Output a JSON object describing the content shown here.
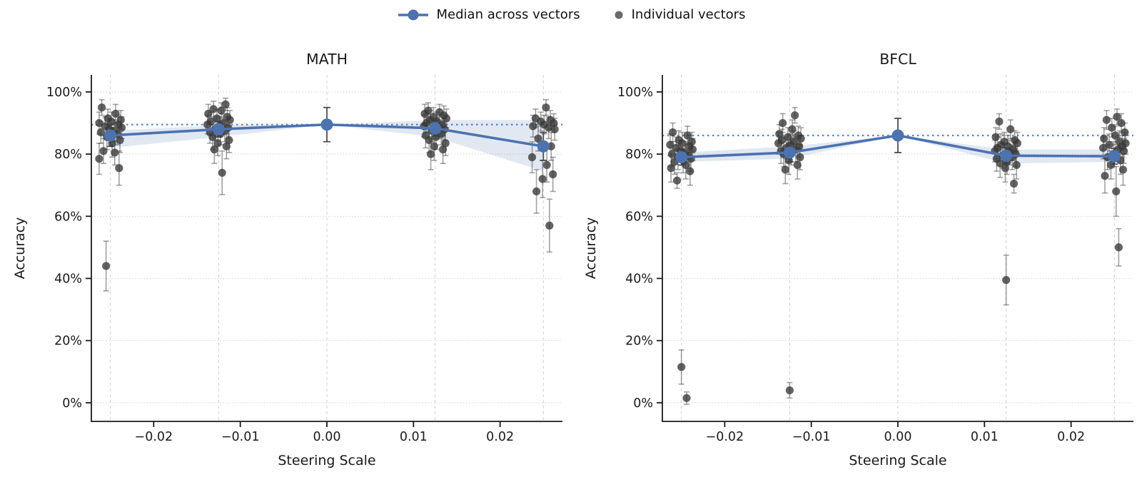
{
  "legend": {
    "median_label": "Median across vectors",
    "individual_label": "Individual vectors"
  },
  "colors": {
    "median_blue": "#4C72B0",
    "baseline_blue": "#5E88C4",
    "band_fill": "rgba(76,114,176,0.16)",
    "dot_gray": "rgba(55,55,55,0.78)",
    "errbar_gray": "rgba(85,85,85,0.55)",
    "median_errbar": "rgba(60,60,60,0.9)",
    "grid": "#cfcfcf",
    "spine": "#1a1a1a",
    "text": "#1a1a1a"
  },
  "axes": {
    "xlabel": "Steering Scale",
    "ylabel": "Accuracy",
    "xlim": [
      -0.0272,
      0.0272
    ],
    "ylim": [
      -6,
      105.5
    ],
    "x_ticks": [
      -0.02,
      -0.01,
      0.0,
      0.01,
      0.02
    ],
    "x_tick_labels": [
      "−0.02",
      "−0.01",
      "0.00",
      "0.01",
      "0.02"
    ],
    "y_ticks": [
      0,
      20,
      40,
      60,
      80,
      100
    ],
    "y_tick_labels": [
      "0%",
      "20%",
      "40%",
      "60%",
      "80%",
      "100%"
    ]
  },
  "chart_data": [
    {
      "type": "line+scatter",
      "title": "MATH",
      "baseline": 89.5,
      "x": [
        -0.025,
        -0.0125,
        0.0,
        0.0125,
        0.025
      ],
      "median": [
        86.0,
        88.0,
        89.5,
        88.3,
        82.5
      ],
      "median_err": [
        3.5,
        2.5,
        5.5,
        2.5,
        4.5
      ],
      "band_lo": [
        82.0,
        85.5,
        89.5,
        85.5,
        74.5
      ],
      "band_hi": [
        87.5,
        89.3,
        89.5,
        91.0,
        91.0
      ],
      "clusters": [
        {
          "x": -0.025,
          "points": [
            [
              -0.001,
              95,
              2.5
            ],
            [
              0.0006,
              93,
              3
            ],
            [
              -0.0003,
              91.5,
              3
            ],
            [
              0.0012,
              91,
              3
            ],
            [
              0.0001,
              90.5,
              3
            ],
            [
              -0.0013,
              90,
              3.5
            ],
            [
              0.0009,
              89.5,
              3
            ],
            [
              -0.0006,
              89,
              3
            ],
            [
              0.0013,
              88.5,
              3.5
            ],
            [
              -0.0001,
              88,
              3
            ],
            [
              0.0004,
              87.5,
              3.5
            ],
            [
              -0.0011,
              87,
              3.5
            ],
            [
              0.0008,
              86.5,
              3.5
            ],
            [
              -0.0004,
              85.5,
              4
            ],
            [
              0.0011,
              84.5,
              4
            ],
            [
              0.0002,
              83.5,
              4.5
            ],
            [
              -0.0008,
              81,
              4
            ],
            [
              0.0005,
              80.5,
              4
            ],
            [
              -0.0013,
              78.5,
              5
            ],
            [
              0.001,
              75.5,
              5.5
            ],
            [
              -0.0005,
              44,
              8
            ]
          ]
        },
        {
          "x": -0.0125,
          "points": [
            [
              0.0008,
              96,
              2
            ],
            [
              -0.0006,
              94.5,
              2.5
            ],
            [
              0.0003,
              94,
              2.5
            ],
            [
              -0.0012,
              93,
              3
            ],
            [
              0.001,
              92,
              3
            ],
            [
              -0.0002,
              91.5,
              3
            ],
            [
              0.0013,
              91,
              3
            ],
            [
              -0.0009,
              90.5,
              3
            ],
            [
              0.0005,
              90,
              3
            ],
            [
              -0.0013,
              89.5,
              3
            ],
            [
              0.0001,
              89,
              3
            ],
            [
              0.0011,
              88.5,
              3.5
            ],
            [
              -0.0004,
              88,
              3.5
            ],
            [
              0.0007,
              87.5,
              3.5
            ],
            [
              -0.001,
              87,
              3.5
            ],
            [
              0.0002,
              86.5,
              3.5
            ],
            [
              -0.0007,
              85.5,
              4
            ],
            [
              0.0012,
              84.5,
              4
            ],
            [
              -0.0001,
              83.5,
              4
            ],
            [
              0.0009,
              82.5,
              4
            ],
            [
              -0.0005,
              81.5,
              4.5
            ],
            [
              0.0004,
              74,
              7
            ]
          ]
        },
        {
          "x": 0.0,
          "points": []
        },
        {
          "x": 0.0125,
          "points": [
            [
              -0.0008,
              94,
              2.5
            ],
            [
              0.0005,
              93.5,
              2.5
            ],
            [
              -0.0012,
              93,
              3
            ],
            [
              0.001,
              92.5,
              3
            ],
            [
              -0.0002,
              92,
              3
            ],
            [
              0.0013,
              91.5,
              3
            ],
            [
              -0.0006,
              91,
              3
            ],
            [
              0.0002,
              90.5,
              3
            ],
            [
              -0.001,
              90,
              3
            ],
            [
              0.0008,
              89.5,
              3
            ],
            [
              -0.0013,
              89,
              3.5
            ],
            [
              0.0004,
              88.5,
              3.5
            ],
            [
              0.0011,
              88,
              3.5
            ],
            [
              -0.0004,
              87.5,
              3.5
            ],
            [
              0.0007,
              86.5,
              3.5
            ],
            [
              -0.0011,
              86,
              4
            ],
            [
              0.0001,
              85.5,
              4
            ],
            [
              -0.0007,
              84.5,
              4
            ],
            [
              0.0012,
              83.5,
              4
            ],
            [
              -0.0001,
              82.5,
              4.5
            ],
            [
              0.0009,
              81.5,
              4.5
            ],
            [
              -0.0005,
              80,
              5
            ]
          ]
        },
        {
          "x": 0.025,
          "points": [
            [
              0.0003,
              95,
              2.5
            ],
            [
              -0.0009,
              91.5,
              3
            ],
            [
              0.0008,
              91,
              3
            ],
            [
              -0.0003,
              90.5,
              3
            ],
            [
              0.0012,
              90,
              3
            ],
            [
              0.0001,
              89.5,
              3
            ],
            [
              -0.0012,
              89,
              3.5
            ],
            [
              0.0006,
              88.5,
              3.5
            ],
            [
              0.0013,
              88,
              3.5
            ],
            [
              -0.0006,
              85,
              4
            ],
            [
              0.0009,
              82.5,
              4.5
            ],
            [
              -0.0013,
              79,
              5
            ],
            [
              0.0004,
              76.5,
              5.5
            ],
            [
              0.0011,
              73.5,
              5.5
            ],
            [
              -0.0001,
              72,
              6
            ],
            [
              -0.0008,
              68,
              7
            ],
            [
              0.0007,
              57,
              8.5
            ]
          ]
        }
      ]
    },
    {
      "type": "line+scatter",
      "title": "BFCL",
      "baseline": 86.0,
      "x": [
        -0.025,
        -0.0125,
        0.0,
        0.0125,
        0.025
      ],
      "median": [
        79.0,
        80.5,
        86.0,
        79.5,
        79.3
      ],
      "median_err": [
        2.5,
        3.0,
        5.5,
        2.5,
        2.5
      ],
      "band_lo": [
        77.5,
        78.5,
        86.0,
        77.0,
        77.5
      ],
      "band_hi": [
        80.5,
        82.5,
        86.0,
        81.5,
        81.5
      ],
      "clusters": [
        {
          "x": -0.025,
          "points": [
            [
              -0.001,
              87,
              3
            ],
            [
              0.0007,
              86,
              3
            ],
            [
              -0.0003,
              84.5,
              3
            ],
            [
              0.0012,
              84,
              3
            ],
            [
              0.0001,
              83.5,
              3.5
            ],
            [
              -0.0013,
              83,
              3.5
            ],
            [
              0.0009,
              82.5,
              3.5
            ],
            [
              -0.0006,
              82,
              3.5
            ],
            [
              0.0013,
              81.5,
              3.5
            ],
            [
              -0.0001,
              81,
              3.5
            ],
            [
              0.0004,
              80.5,
              3.5
            ],
            [
              -0.0011,
              80,
              4
            ],
            [
              0.0008,
              79.5,
              4
            ],
            [
              -0.0004,
              79,
              4
            ],
            [
              0.0011,
              78.5,
              4
            ],
            [
              0.0002,
              78,
              4
            ],
            [
              -0.0008,
              77.5,
              4
            ],
            [
              0.0005,
              76.5,
              4.5
            ],
            [
              -0.0012,
              75.5,
              4.5
            ],
            [
              0.001,
              74.5,
              4.5
            ],
            [
              -0.0005,
              71.5,
              2.5
            ],
            [
              0.0,
              11.5,
              5.5
            ],
            [
              0.0006,
              1.5,
              2
            ]
          ]
        },
        {
          "x": -0.0125,
          "points": [
            [
              0.0006,
              92.5,
              2.5
            ],
            [
              -0.0008,
              90,
              3
            ],
            [
              0.0003,
              88,
              3
            ],
            [
              -0.0012,
              86.5,
              3
            ],
            [
              0.001,
              86,
              3
            ],
            [
              -0.0002,
              85.5,
              3
            ],
            [
              0.0013,
              85,
              3.5
            ],
            [
              -0.0009,
              84.5,
              3.5
            ],
            [
              0.0005,
              84,
              3.5
            ],
            [
              -0.0013,
              83.5,
              3.5
            ],
            [
              0.0001,
              83,
              3.5
            ],
            [
              0.0011,
              82.5,
              3.5
            ],
            [
              -0.0004,
              82,
              3.5
            ],
            [
              0.0007,
              81.5,
              4
            ],
            [
              -0.001,
              81,
              4
            ],
            [
              0.0002,
              80.5,
              4
            ],
            [
              -0.0007,
              80,
              4
            ],
            [
              0.0012,
              79,
              4
            ],
            [
              -0.0001,
              78,
              4.5
            ],
            [
              0.0009,
              76.5,
              4.5
            ],
            [
              -0.0005,
              75,
              4.5
            ],
            [
              0.0,
              4,
              2.5
            ]
          ]
        },
        {
          "x": 0.0,
          "points": []
        },
        {
          "x": 0.0125,
          "points": [
            [
              -0.0008,
              90.5,
              2.5
            ],
            [
              0.0005,
              88,
              3
            ],
            [
              -0.0012,
              85.5,
              3
            ],
            [
              0.001,
              84.5,
              3
            ],
            [
              -0.0002,
              84,
              3
            ],
            [
              0.0013,
              83.5,
              3.5
            ],
            [
              -0.0006,
              83,
              3.5
            ],
            [
              0.0002,
              82.5,
              3.5
            ],
            [
              -0.001,
              82,
              3.5
            ],
            [
              0.0008,
              81.5,
              3.5
            ],
            [
              -0.0013,
              81,
              3.5
            ],
            [
              0.0004,
              80.5,
              4
            ],
            [
              0.0011,
              80,
              4
            ],
            [
              -0.0004,
              79.5,
              4
            ],
            [
              0.0007,
              79,
              4
            ],
            [
              -0.0011,
              78.5,
              4
            ],
            [
              0.0001,
              77.5,
              4
            ],
            [
              -0.0007,
              77,
              4.5
            ],
            [
              0.0012,
              76.5,
              4.5
            ],
            [
              -0.0001,
              75.5,
              4.5
            ],
            [
              0.0009,
              70.5,
              3
            ],
            [
              0.0,
              39.5,
              8
            ]
          ]
        },
        {
          "x": 0.025,
          "points": [
            [
              0.0003,
              92,
              2.5
            ],
            [
              -0.0009,
              91,
              3
            ],
            [
              0.0008,
              90,
              3
            ],
            [
              -0.0003,
              88.5,
              3
            ],
            [
              0.0012,
              87,
              3
            ],
            [
              0.0001,
              86,
              3
            ],
            [
              -0.0012,
              85,
              3.5
            ],
            [
              0.0006,
              84,
              3.5
            ],
            [
              0.0013,
              83.5,
              3.5
            ],
            [
              -0.0006,
              83,
              3.5
            ],
            [
              0.0009,
              82.5,
              3.5
            ],
            [
              -0.0013,
              82,
              3.5
            ],
            [
              0.0004,
              81.5,
              4
            ],
            [
              0.0011,
              81,
              4
            ],
            [
              -0.0001,
              80,
              4
            ],
            [
              -0.0008,
              79,
              4
            ],
            [
              0.0007,
              78,
              4.5
            ],
            [
              -0.0004,
              76.5,
              4.5
            ],
            [
              0.001,
              75,
              5
            ],
            [
              -0.0011,
              73,
              5.5
            ],
            [
              0.0002,
              68,
              8
            ],
            [
              0.0005,
              50,
              6
            ]
          ]
        }
      ]
    }
  ]
}
